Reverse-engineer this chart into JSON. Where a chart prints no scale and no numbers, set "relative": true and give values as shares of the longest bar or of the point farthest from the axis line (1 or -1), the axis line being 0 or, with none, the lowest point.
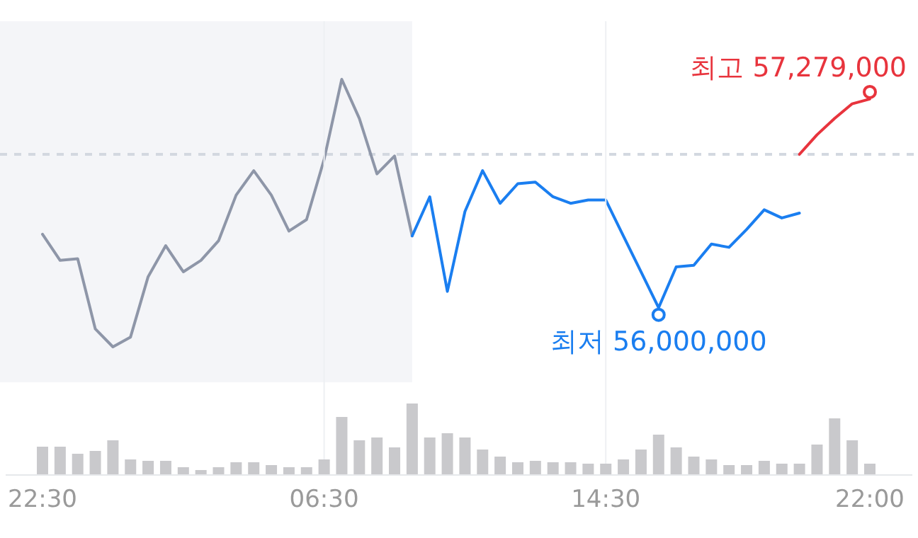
{
  "chart_data": [
    {
      "type": "line",
      "categories": [
        null,
        null,
        null,
        null,
        null,
        null,
        null,
        null,
        null,
        null,
        null,
        null,
        null,
        null,
        null,
        null,
        null,
        null,
        null,
        null,
        null,
        null,
        null,
        null,
        null,
        null,
        null,
        null,
        null,
        null,
        null,
        null,
        null,
        null,
        null,
        null,
        null,
        null,
        null,
        null,
        null,
        null,
        null,
        null,
        null,
        null,
        null,
        null
      ],
      "line_style": "solid",
      "series": [
        {
          "color": "#8e96a8",
          "values": [
            56450000,
            56290000,
            56300000,
            55870000,
            55760000,
            55820000,
            56190000,
            56380000,
            56220000,
            56290000,
            56410000,
            56690000,
            56840000,
            56690000,
            56470000,
            56540000,
            56910000,
            57400000,
            57160000,
            56820000,
            56930000,
            56440000,
            null,
            null,
            null,
            null,
            null,
            null,
            null,
            null,
            null,
            null,
            null,
            null,
            null,
            null,
            null,
            null,
            null,
            null,
            null,
            null,
            null,
            null,
            null,
            null,
            null,
            null
          ]
        },
        {
          "color": "#1a7ef0",
          "values": [
            null,
            null,
            null,
            null,
            null,
            null,
            null,
            null,
            null,
            null,
            null,
            null,
            null,
            null,
            null,
            null,
            null,
            null,
            null,
            null,
            null,
            56440000,
            56680000,
            56100000,
            56590000,
            56840000,
            56640000,
            56760000,
            56770000,
            56680000,
            56640000,
            56660000,
            56660000,
            56440000,
            56220000,
            56000000,
            56250000,
            56260000,
            56390000,
            56370000,
            56480000,
            56600000,
            56550000,
            56580000,
            null,
            null,
            null,
            null
          ],
          "value_labels": [
            null,
            null,
            null,
            null,
            null,
            null,
            null,
            null,
            null,
            null,
            null,
            null,
            null,
            null,
            null,
            null,
            null,
            null,
            null,
            null,
            null,
            null,
            null,
            null,
            null,
            null,
            null,
            null,
            null,
            null,
            null,
            null,
            null,
            null,
            null,
            "최저 56,000,000",
            null,
            null,
            null,
            null,
            null,
            null,
            null,
            null,
            null,
            null,
            null,
            null
          ]
        },
        {
          "color": "#e8343d",
          "values": [
            null,
            null,
            null,
            null,
            null,
            null,
            null,
            null,
            null,
            null,
            null,
            null,
            null,
            null,
            null,
            null,
            null,
            null,
            null,
            null,
            null,
            null,
            null,
            null,
            null,
            null,
            null,
            null,
            null,
            null,
            null,
            null,
            null,
            null,
            null,
            null,
            null,
            null,
            null,
            null,
            null,
            null,
            null,
            56940000,
            57060000,
            57160000,
            57250000,
            57279000
          ],
          "value_labels": [
            null,
            null,
            null,
            null,
            null,
            null,
            null,
            null,
            null,
            null,
            null,
            null,
            null,
            null,
            null,
            null,
            null,
            null,
            null,
            null,
            null,
            null,
            null,
            null,
            null,
            null,
            null,
            null,
            null,
            null,
            null,
            null,
            null,
            null,
            null,
            null,
            null,
            null,
            null,
            null,
            null,
            null,
            null,
            null,
            null,
            null,
            null,
            "최고 57,279,000"
          ]
        }
      ],
      "ref_lines": [
        {
          "axis": "y",
          "value": 56940000,
          "color": "#d3d8e0",
          "line_style": "dashed"
        }
      ]
    },
    {
      "type": "bar",
      "relative": true,
      "color": "#c9c9cc",
      "grid": "x",
      "categories": [
        "22:30",
        null,
        null,
        null,
        null,
        null,
        null,
        null,
        null,
        null,
        null,
        null,
        null,
        null,
        null,
        null,
        "06:30",
        null,
        null,
        null,
        null,
        null,
        null,
        null,
        null,
        null,
        null,
        null,
        null,
        null,
        null,
        null,
        "14:30",
        null,
        null,
        null,
        null,
        null,
        null,
        null,
        null,
        null,
        null,
        null,
        null,
        null,
        null,
        "22:00"
      ],
      "values": [
        0.39,
        0.39,
        0.29,
        0.33,
        0.48,
        0.21,
        0.19,
        0.19,
        0.1,
        0.06,
        0.1,
        0.17,
        0.17,
        0.13,
        0.1,
        0.1,
        0.21,
        0.81,
        0.48,
        0.52,
        0.38,
        1,
        0.52,
        0.58,
        0.52,
        0.35,
        0.25,
        0.17,
        0.19,
        0.17,
        0.17,
        0.15,
        0.15,
        0.21,
        0.35,
        0.56,
        0.38,
        0.25,
        0.21,
        0.13,
        0.13,
        0.19,
        0.15,
        0.15,
        0.42,
        0.79,
        0.48,
        0.15
      ]
    }
  ]
}
